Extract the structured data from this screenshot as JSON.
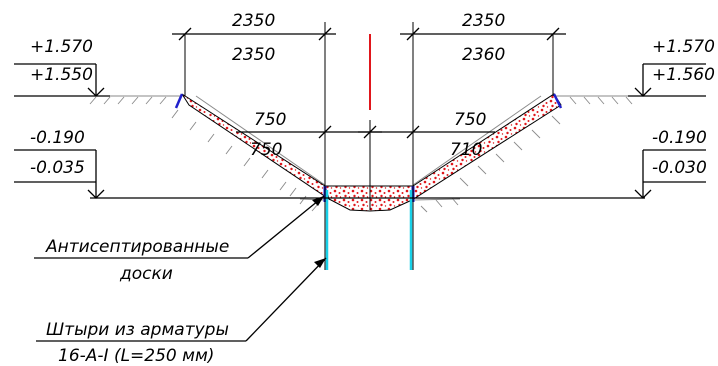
{
  "elevations": {
    "left_top_upper": "+1.570",
    "left_top_lower": "+1.550",
    "right_top_upper": "+1.570",
    "right_top_lower": "+1.560",
    "left_mid_upper": "-0.190",
    "left_mid_lower": "-0.035",
    "right_mid_upper": "-0.190",
    "right_mid_lower": "-0.030"
  },
  "dimensions": {
    "left_top_upper": "2350",
    "left_top_lower": "2350",
    "right_top_upper": "2350",
    "right_top_lower": "2360",
    "left_mid_upper": "750",
    "left_mid_lower": "750",
    "right_mid_upper": "750",
    "right_mid_lower": "710"
  },
  "labels": {
    "boards_line1": "Антисептированные",
    "boards_line2": "доски",
    "pins_line1": "Штыри из арматуры",
    "pins_line2": "16-А-I (L=250 мм)"
  },
  "colors": {
    "axis": "#e0161b",
    "pins": "#18d0e8",
    "fill_dots": "#e0161b",
    "boards": "#2020cc",
    "ground": "#8a8a8a"
  }
}
